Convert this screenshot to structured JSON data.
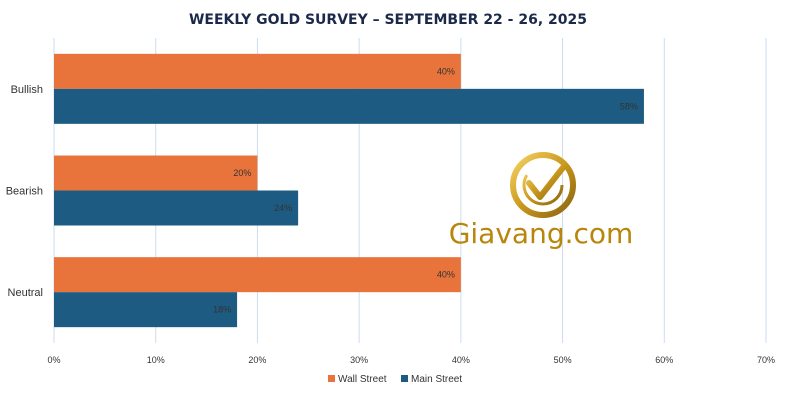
{
  "chart_data": {
    "type": "bar",
    "orientation": "horizontal",
    "title": "WEEKLY GOLD SURVEY – SEPTEMBER 22 - 26, 2025",
    "categories": [
      "Bullish",
      "Bearish",
      "Neutral"
    ],
    "series": [
      {
        "name": "Wall Street",
        "values": [
          40,
          20,
          40
        ],
        "color": "#e8743b"
      },
      {
        "name": "Main Street",
        "values": [
          58,
          24,
          18
        ],
        "color": "#1e5b82"
      }
    ],
    "value_format": "percent",
    "xlim": [
      0,
      70
    ],
    "xticks": [
      0,
      10,
      20,
      30,
      40,
      50,
      60,
      70
    ],
    "xtick_labels": [
      "0%",
      "10%",
      "20%",
      "30%",
      "40%",
      "50%",
      "60%",
      "70%"
    ],
    "data_labels": [
      [
        "40%",
        "20%",
        "40%"
      ],
      [
        "58%",
        "24%",
        "18%"
      ]
    ],
    "grid": "vertical",
    "legend_position": "bottom"
  },
  "watermark": {
    "text": "Giavang.com",
    "icon": "gold-check-logo-icon",
    "color": "#b8860b"
  }
}
